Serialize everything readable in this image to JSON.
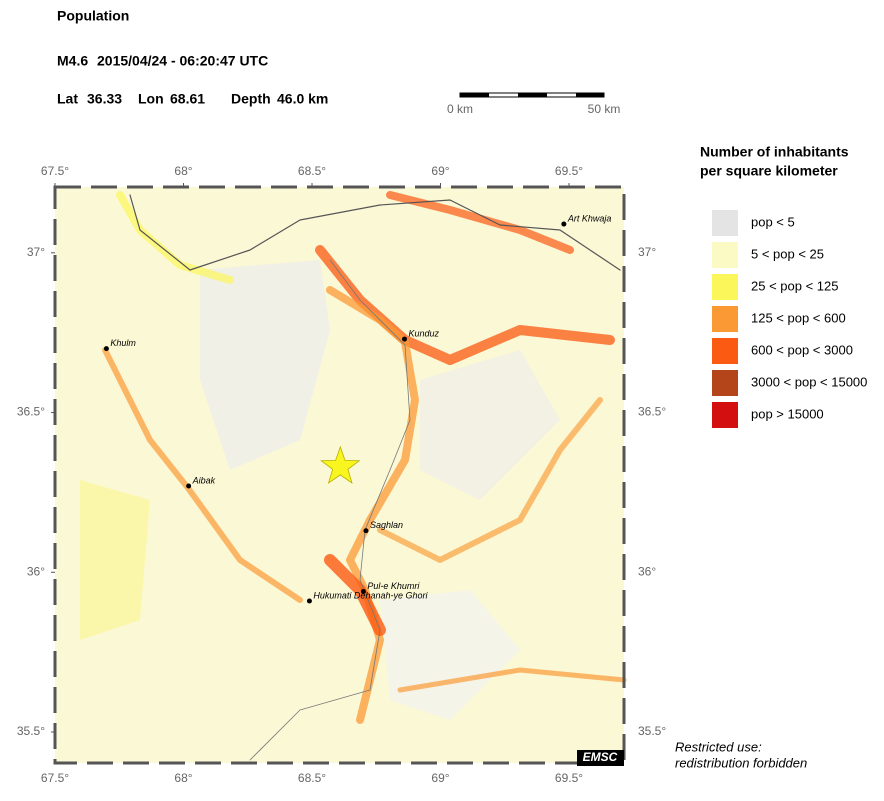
{
  "header": {
    "title": "Population",
    "magnitude": "M4.6",
    "datetime": "2015/04/24 - 06:20:47 UTC",
    "lat_label": "Lat",
    "lat": 36.33,
    "lon_label": "Lon",
    "lon": 68.61,
    "depth_label": "Depth",
    "depth": {
      "value": 46,
      "label": "46.0 km"
    }
  },
  "scale_bar": {
    "start": "0 km",
    "end": "50 km"
  },
  "map": {
    "xlim": [
      67.5,
      69.714
    ],
    "ylim": [
      35.403,
      37.206
    ],
    "xticks": [
      {
        "value": 67.5,
        "label": "67.5°"
      },
      {
        "value": 68,
        "label": "68°"
      },
      {
        "value": 68.5,
        "label": "68.5°"
      },
      {
        "value": 69,
        "label": "69°"
      },
      {
        "value": 69.5,
        "label": "69.5°"
      }
    ],
    "yticks": [
      {
        "value": 37,
        "label": "37°"
      },
      {
        "value": 36.5,
        "label": "36.5°"
      },
      {
        "value": 36,
        "label": "36°"
      },
      {
        "value": 35.5,
        "label": "35.5°"
      }
    ],
    "cities": [
      {
        "name": "Khulm",
        "lon": 67.7,
        "lat": 36.7
      },
      {
        "name": "Aibak",
        "lon": 68.02,
        "lat": 36.27
      },
      {
        "name": "Kunduz",
        "lon": 68.86,
        "lat": 36.73
      },
      {
        "name": "Art Khwaja",
        "lon": 69.48,
        "lat": 37.09
      },
      {
        "name": "Saghlan",
        "lon": 68.71,
        "lat": 36.13
      },
      {
        "name": "Pul-e Khumri",
        "lon": 68.7,
        "lat": 35.94
      },
      {
        "name": "Hukumati Dehanah-ye Ghori",
        "lon": 68.49,
        "lat": 35.91
      }
    ],
    "credit": "EMSC"
  },
  "legend": {
    "title": [
      "Number of inhabitants",
      "per square kilometer"
    ],
    "items": [
      {
        "label": "pop < 5",
        "color": "#e4e4e4"
      },
      {
        "label": "5 < pop < 25",
        "color": "#fbfac4"
      },
      {
        "label": "25 < pop < 125",
        "color": "#fbf65a"
      },
      {
        "label": "125 < pop < 600",
        "color": "#fb9a34"
      },
      {
        "label": "600 < pop < 3000",
        "color": "#fb5a12"
      },
      {
        "label": "3000 < pop < 15000",
        "color": "#b4441a"
      },
      {
        "label": "pop > 15000",
        "color": "#d40f0f"
      }
    ]
  },
  "note": [
    "Restricted use:",
    "redistribution forbidden"
  ]
}
